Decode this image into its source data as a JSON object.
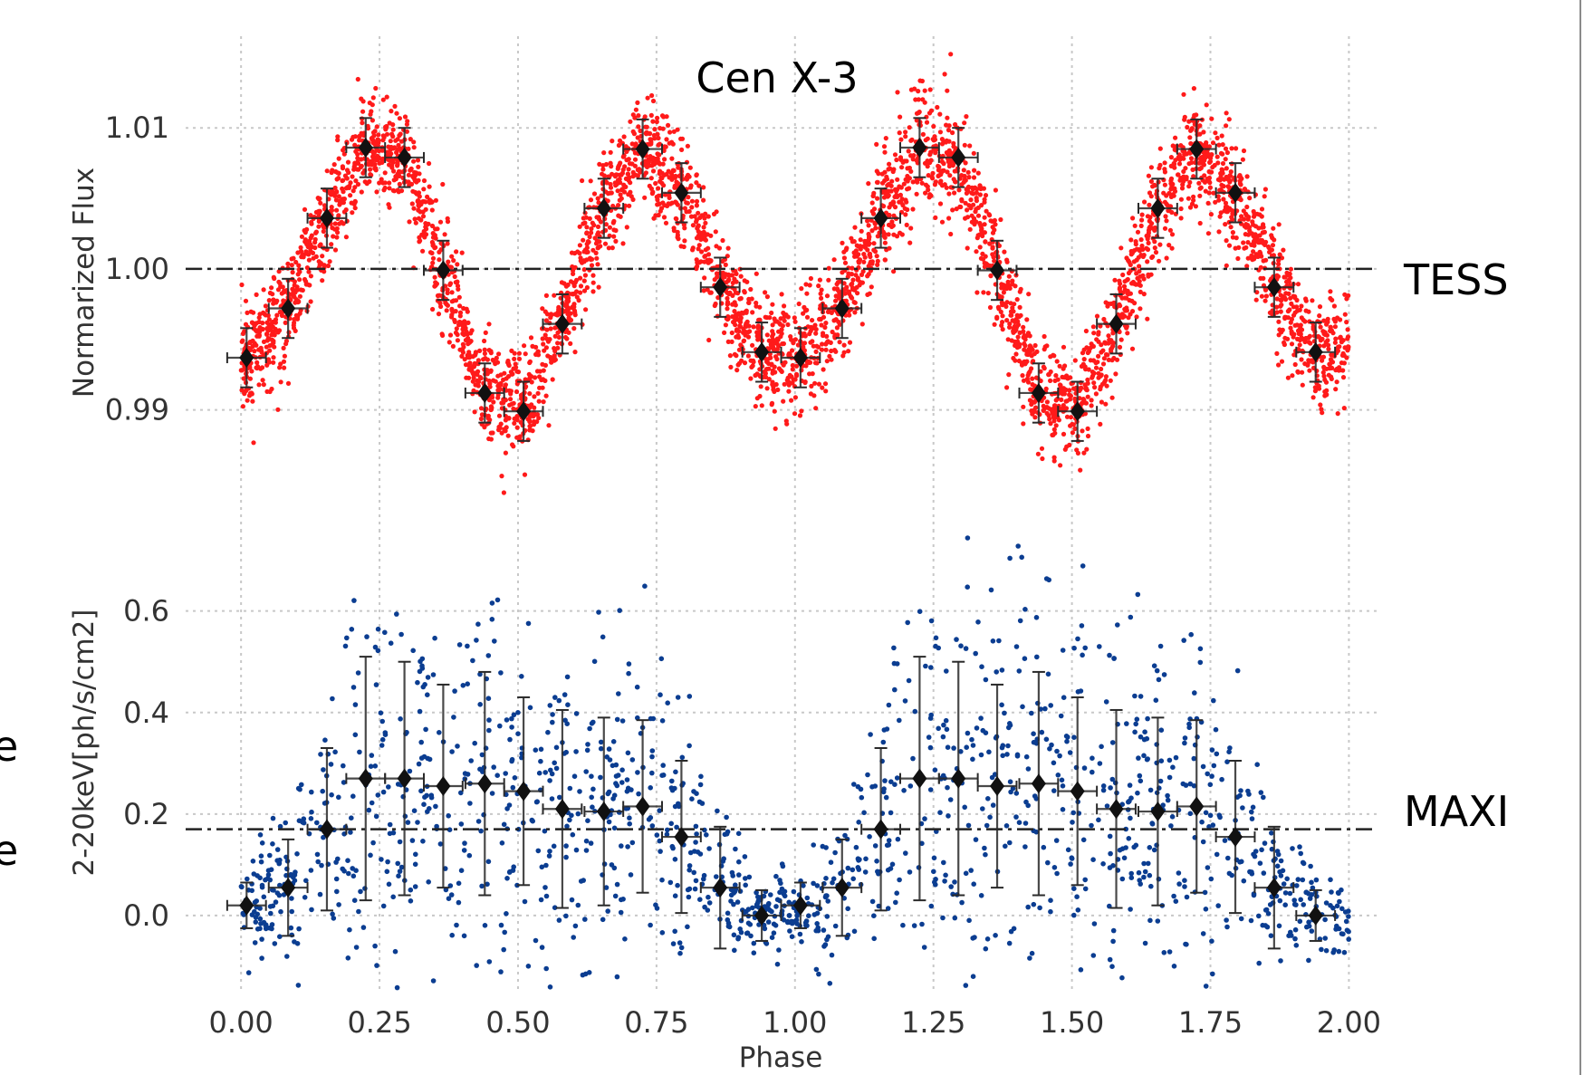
{
  "chart_data": [
    {
      "type": "scatter",
      "panel": "top",
      "title": "Cen X-3",
      "xlabel": "",
      "ylabel": "Normarized Flux",
      "label": "TESS",
      "xlim": [
        -0.1,
        2.05
      ],
      "ylim": [
        0.9815,
        1.0165
      ],
      "yticks": [
        0.99,
        1.0,
        1.01
      ],
      "ytick_labels": [
        "0.99",
        "1.00",
        "1.01"
      ],
      "reference_line": 1.0,
      "grid": true,
      "points_color": "#ff1a1a",
      "binned": {
        "x": [
          0.01,
          0.085,
          0.155,
          0.225,
          0.295,
          0.365,
          0.44,
          0.51,
          0.58,
          0.655,
          0.725,
          0.795,
          0.865,
          0.94,
          1.01,
          1.085,
          1.155,
          1.225,
          1.295,
          1.365,
          1.44,
          1.51,
          1.58,
          1.655,
          1.725,
          1.795,
          1.865,
          1.94
        ],
        "y": [
          0.9937,
          0.9972,
          1.0036,
          1.0086,
          1.0079,
          0.9999,
          0.9912,
          0.9899,
          0.9961,
          1.0043,
          1.0085,
          1.0054,
          0.9987,
          0.9941,
          0.9937,
          0.9972,
          1.0036,
          1.0086,
          1.0079,
          0.9999,
          0.9912,
          0.9899,
          0.9961,
          1.0043,
          1.0085,
          1.0054,
          0.9987,
          0.9941
        ],
        "yerr": 0.0021,
        "xerr": 0.035
      }
    },
    {
      "type": "scatter",
      "panel": "bottom",
      "xlabel": "Phase",
      "ylabel": "2-20keV[ph/s/cm2]",
      "label": "MAXI",
      "xlim": [
        -0.1,
        2.05
      ],
      "ylim": [
        -0.15,
        0.76
      ],
      "xticks": [
        0.0,
        0.25,
        0.5,
        0.75,
        1.0,
        1.25,
        1.5,
        1.75,
        2.0
      ],
      "xtick_labels": [
        "0.00",
        "0.25",
        "0.50",
        "0.75",
        "1.00",
        "1.25",
        "1.50",
        "1.75",
        "2.00"
      ],
      "yticks": [
        0.0,
        0.2,
        0.4,
        0.6
      ],
      "ytick_labels": [
        "0.0",
        "0.2",
        "0.4",
        "0.6"
      ],
      "reference_line": 0.17,
      "grid": true,
      "points_color": "#0b3d91",
      "binned": {
        "x": [
          0.01,
          0.085,
          0.155,
          0.225,
          0.295,
          0.365,
          0.44,
          0.51,
          0.58,
          0.655,
          0.725,
          0.795,
          0.865,
          0.94,
          1.01,
          1.085,
          1.155,
          1.225,
          1.295,
          1.365,
          1.44,
          1.51,
          1.58,
          1.655,
          1.725,
          1.795,
          1.865,
          1.94
        ],
        "y": [
          0.02,
          0.055,
          0.17,
          0.27,
          0.27,
          0.255,
          0.26,
          0.245,
          0.21,
          0.205,
          0.215,
          0.155,
          0.055,
          0.0,
          0.02,
          0.055,
          0.17,
          0.27,
          0.27,
          0.255,
          0.26,
          0.245,
          0.21,
          0.205,
          0.215,
          0.155,
          0.055,
          0.0
        ],
        "yerr": [
          0.045,
          0.095,
          0.16,
          0.24,
          0.23,
          0.2,
          0.22,
          0.185,
          0.195,
          0.185,
          0.17,
          0.15,
          0.12,
          0.05,
          0.045,
          0.095,
          0.16,
          0.24,
          0.23,
          0.2,
          0.22,
          0.185,
          0.195,
          0.185,
          0.17,
          0.15,
          0.12,
          0.05
        ],
        "xerr": 0.035
      }
    }
  ],
  "annotations": {
    "title": "Cen X-3",
    "tess_label": "TESS",
    "maxi_label": "MAXI",
    "left_fragment_1": "e",
    "left_fragment_2": "e"
  }
}
